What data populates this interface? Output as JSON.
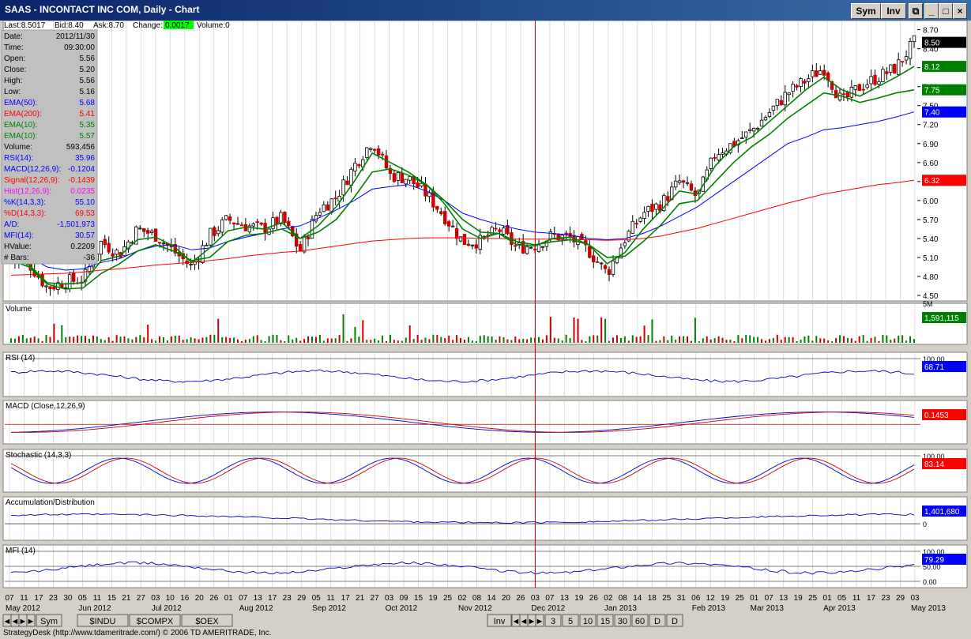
{
  "window": {
    "title": "SAAS - INCONTACT INC COM, Daily - Chart",
    "sym_btn": "Sym",
    "inv_btn": "Inv"
  },
  "quote": {
    "last_label": "Last:",
    "last": "8.5017",
    "bid_label": "Bid:",
    "bid": "8.40",
    "ask_label": "Ask:",
    "ask": "8.70",
    "change_label": "Change:",
    "change": "0.0017",
    "volume_label": "Volume:",
    "volume": "0"
  },
  "data_window": [
    {
      "label": "Date:",
      "value": "2012/11/30",
      "color": "#000000"
    },
    {
      "label": "Time:",
      "value": "09:30:00",
      "color": "#000000"
    },
    {
      "label": "Open:",
      "value": "5.56",
      "color": "#000000"
    },
    {
      "label": "Close:",
      "value": "5.20",
      "color": "#000000"
    },
    {
      "label": "High:",
      "value": "5.56",
      "color": "#000000"
    },
    {
      "label": "Low:",
      "value": "5.16",
      "color": "#000000"
    },
    {
      "label": "EMA(50):",
      "value": "5.68",
      "color": "#0000ff"
    },
    {
      "label": "EMA(200):",
      "value": "5.41",
      "color": "#ff0000"
    },
    {
      "label": "EMA(10):",
      "value": "5.35",
      "color": "#008000"
    },
    {
      "label": "EMA(10):",
      "value": "5.57",
      "color": "#008000"
    },
    {
      "label": "Volume:",
      "value": "593,456",
      "color": "#000000"
    },
    {
      "label": "RSI(14):",
      "value": "35.96",
      "color": "#0000ff"
    },
    {
      "label": "MACD(12,26,9):",
      "value": "-0.1204",
      "color": "#0000ff"
    },
    {
      "label": "Signal(12,26,9):",
      "value": "-0.1439",
      "color": "#ff0000"
    },
    {
      "label": "Hist(12,26,9):",
      "value": "0.0235",
      "color": "#ff00ff"
    },
    {
      "label": "%K(14,3,3):",
      "value": "55.10",
      "color": "#0000ff"
    },
    {
      "label": "%D(14,3,3):",
      "value": "69.53",
      "color": "#ff0000"
    },
    {
      "label": "A/D:",
      "value": "-1,501,973",
      "color": "#0000ff"
    },
    {
      "label": "MFI(14):",
      "value": "30.57",
      "color": "#0000ff"
    },
    {
      "label": "HValue:",
      "value": "0.2209",
      "color": "#000000"
    },
    {
      "label": "# Bars:",
      "value": "-36",
      "color": "#000000"
    }
  ],
  "chart_data": {
    "type": "candlestick",
    "symbol": "SAAS",
    "interval": "Daily",
    "price_axis": {
      "ticks": [
        4.5,
        4.8,
        5.1,
        5.4,
        5.7,
        6.0,
        6.3,
        6.6,
        6.9,
        7.2,
        7.5,
        7.8,
        8.1,
        8.4,
        8.7
      ],
      "range": [
        4.45,
        8.82
      ]
    },
    "price_badges": [
      {
        "label": "8.50",
        "value": 8.5,
        "color": "#000000"
      },
      {
        "label": "8.12",
        "value": 8.12,
        "color": "#008000"
      },
      {
        "label": "7.75",
        "value": 7.75,
        "color": "#008000"
      },
      {
        "label": "7.40",
        "value": 7.4,
        "color": "#0000ff"
      },
      {
        "label": "6.32",
        "value": 6.32,
        "color": "#ff0000"
      }
    ],
    "weekly_closes": [
      5.05,
      5.0,
      4.62,
      4.72,
      4.75,
      5.35,
      5.15,
      5.55,
      5.45,
      5.2,
      4.95,
      5.45,
      5.7,
      5.6,
      5.55,
      5.72,
      5.2,
      5.85,
      6.05,
      6.55,
      6.95,
      6.4,
      6.35,
      6.1,
      5.75,
      5.35,
      5.35,
      5.55,
      5.25,
      5.3,
      5.45,
      5.4,
      5.2,
      4.85,
      5.4,
      5.8,
      5.95,
      6.3,
      6.05,
      6.75,
      6.9,
      7.1,
      7.4,
      7.7,
      7.9,
      8.1,
      7.55,
      7.8,
      7.95,
      8.1,
      8.5
    ],
    "ema_lines": [
      {
        "name": "EMA(50)",
        "color": "#0000ff",
        "values": [
          5.25,
          5.1,
          4.95,
          4.9,
          4.92,
          5.02,
          5.08,
          5.2,
          5.28,
          5.3,
          5.22,
          5.25,
          5.35,
          5.42,
          5.48,
          5.55,
          5.6,
          5.72,
          5.85,
          6.0,
          6.18,
          6.22,
          6.25,
          6.15,
          6.0,
          5.8,
          5.7,
          5.62,
          5.55,
          5.5,
          5.48,
          5.45,
          5.4,
          5.38,
          5.4,
          5.48,
          5.6,
          5.75,
          5.9,
          6.1,
          6.3,
          6.5,
          6.7,
          6.9,
          7.0,
          7.12,
          7.15,
          7.2,
          7.25,
          7.32,
          7.4
        ]
      },
      {
        "name": "EMA(200)",
        "color": "#ff0000",
        "values": [
          4.82,
          4.83,
          4.84,
          4.85,
          4.87,
          4.9,
          4.92,
          4.95,
          4.98,
          5.0,
          5.02,
          5.05,
          5.08,
          5.12,
          5.15,
          5.18,
          5.2,
          5.24,
          5.28,
          5.32,
          5.36,
          5.38,
          5.4,
          5.41,
          5.41,
          5.41,
          5.4,
          5.4,
          5.39,
          5.39,
          5.39,
          5.38,
          5.38,
          5.37,
          5.38,
          5.4,
          5.44,
          5.5,
          5.56,
          5.64,
          5.72,
          5.8,
          5.88,
          5.96,
          6.03,
          6.1,
          6.15,
          6.2,
          6.25,
          6.28,
          6.32
        ]
      },
      {
        "name": "EMA(10)",
        "color": "#008000",
        "values": [
          5.1,
          4.98,
          4.7,
          4.68,
          4.7,
          5.05,
          5.12,
          5.38,
          5.42,
          5.28,
          5.02,
          5.25,
          5.52,
          5.58,
          5.55,
          5.65,
          5.4,
          5.6,
          5.9,
          6.3,
          6.75,
          6.6,
          6.45,
          6.25,
          5.95,
          5.55,
          5.4,
          5.48,
          5.3,
          5.28,
          5.4,
          5.42,
          5.3,
          5.0,
          5.18,
          5.55,
          5.85,
          6.15,
          6.1,
          6.55,
          6.85,
          7.0,
          7.25,
          7.5,
          7.75,
          7.95,
          7.75,
          7.65,
          7.8,
          7.95,
          8.12
        ]
      },
      {
        "name": "EMA(10)",
        "color": "#008000",
        "values": [
          5.05,
          4.95,
          4.68,
          4.6,
          4.62,
          4.85,
          5.0,
          5.2,
          5.3,
          5.2,
          5.05,
          5.1,
          5.35,
          5.45,
          5.48,
          5.55,
          5.4,
          5.5,
          5.7,
          6.05,
          6.45,
          6.5,
          6.4,
          6.25,
          6.0,
          5.7,
          5.5,
          5.48,
          5.35,
          5.3,
          5.35,
          5.38,
          5.3,
          5.1,
          5.12,
          5.35,
          5.62,
          5.95,
          6.0,
          6.3,
          6.6,
          6.85,
          7.05,
          7.3,
          7.5,
          7.7,
          7.65,
          7.55,
          7.62,
          7.7,
          7.75
        ]
      }
    ],
    "x_axis": {
      "day_ticks": [
        "07",
        "11",
        "17",
        "23",
        "30",
        "05",
        "11",
        "15",
        "21",
        "27",
        "03",
        "10",
        "16",
        "20",
        "26",
        "01",
        "07",
        "13",
        "17",
        "23",
        "29",
        "05",
        "11",
        "17",
        "21",
        "27",
        "03",
        "09",
        "15",
        "19",
        "25",
        "02",
        "08",
        "14",
        "20",
        "26",
        "03",
        "07",
        "13",
        "19",
        "26",
        "02",
        "08",
        "14",
        "18",
        "25",
        "31",
        "06",
        "12",
        "19",
        "25",
        "01",
        "07",
        "13",
        "19",
        "25",
        "01",
        "05",
        "11",
        "17",
        "23",
        "29",
        "03"
      ],
      "month_labels": [
        {
          "label": "May 2012",
          "index": 0
        },
        {
          "label": "Jun 2012",
          "index": 5
        },
        {
          "label": "Jul 2012",
          "index": 10
        },
        {
          "label": "Aug 2012",
          "index": 16
        },
        {
          "label": "Sep 2012",
          "index": 21
        },
        {
          "label": "Oct 2012",
          "index": 26
        },
        {
          "label": "Nov 2012",
          "index": 31
        },
        {
          "label": "Dec 2012",
          "index": 36
        },
        {
          "label": "Jan 2013",
          "index": 41
        },
        {
          "label": "Feb 2013",
          "index": 47
        },
        {
          "label": "Mar 2013",
          "index": 51
        },
        {
          "label": "Apr 2013",
          "index": 56
        },
        {
          "label": "May 2013",
          "index": 62
        }
      ],
      "cursor_index": 36
    },
    "panels": [
      {
        "name": "Volume",
        "badge": "1,591,115",
        "badge_color": "#008000",
        "scale_label": "5M"
      },
      {
        "name": "RSI (14)",
        "badge": "68.71",
        "badge_color": "#0000ff",
        "levels": [
          "100.00"
        ]
      },
      {
        "name": "MACD (Close,12,26,9)",
        "badge": "0.1453",
        "badge_color": "#ff0000"
      },
      {
        "name": "Stochastic (14,3,3)",
        "badge": "83.14",
        "badge_color": "#ff0000",
        "levels": [
          "100.00"
        ]
      },
      {
        "name": "Accumulation/Distribution",
        "badge": "1,401,680",
        "badge_color": "#0000ff",
        "levels": [
          "0"
        ]
      },
      {
        "name": "MFI (14)",
        "badge": "79.29",
        "badge_color": "#0000ff",
        "levels": [
          "100.00",
          "50.00",
          "0.00"
        ]
      }
    ]
  },
  "bottom_tabs": {
    "sym": "Sym",
    "symbols": [
      "$INDU",
      "$COMPX",
      "$OEX"
    ],
    "inv": "Inv",
    "intervals": [
      "3",
      "5",
      "10",
      "15",
      "30",
      "60",
      "D",
      "D"
    ]
  },
  "status": "StrategyDesk (http://www.tdameritrade.com/) © 2006 TD AMERITRADE, Inc."
}
